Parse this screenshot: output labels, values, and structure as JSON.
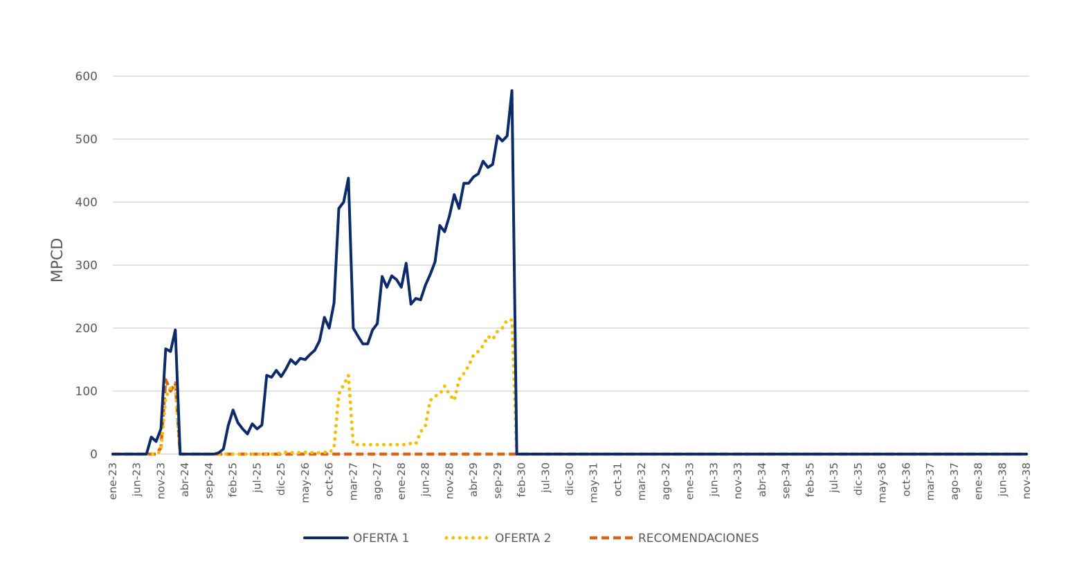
{
  "chart_data": {
    "type": "line",
    "title": "",
    "xlabel": "",
    "ylabel": "MPCD",
    "ylim": [
      0,
      600
    ],
    "y_ticks": [
      0,
      100,
      200,
      300,
      400,
      500,
      600
    ],
    "grid": true,
    "legend_position": "bottom",
    "x_start": "ene-23",
    "x_end": "nov-38",
    "x_interval": "monthly",
    "x_tick_every": 5,
    "x_tick_labels": [
      "ene-23",
      "jun-23",
      "nov-23",
      "abr-24",
      "sep-24",
      "feb-25",
      "jul-25",
      "dic-25",
      "may-26",
      "oct-26",
      "mar-27",
      "ago-27",
      "ene-28",
      "jun-28",
      "nov-28",
      "abr-29",
      "sep-29",
      "feb-30",
      "jul-30",
      "dic-30",
      "may-31",
      "oct-31",
      "mar-32",
      "ago-32",
      "ene-33",
      "jun-33",
      "nov-33",
      "abr-34",
      "sep-34",
      "feb-35",
      "jul-35",
      "dic-35",
      "may-36",
      "oct-36",
      "mar-37",
      "ago-37",
      "ene-38",
      "jun-38",
      "nov-38"
    ],
    "series": [
      {
        "name": "OFERTA 1",
        "color": "#0d2a6b",
        "style": "solid",
        "values": [
          0,
          0,
          0,
          0,
          0,
          0,
          0,
          0,
          27,
          20,
          40,
          167,
          163,
          197,
          0,
          0,
          0,
          0,
          0,
          0,
          0,
          0,
          2,
          8,
          45,
          70,
          50,
          40,
          32,
          48,
          40,
          46,
          125,
          122,
          133,
          123,
          135,
          150,
          143,
          152,
          150,
          158,
          165,
          180,
          217,
          200,
          240,
          390,
          400,
          438,
          200,
          187,
          175,
          175,
          197,
          207,
          282,
          265,
          283,
          277,
          265,
          303,
          238,
          247,
          245,
          268,
          285,
          305,
          363,
          353,
          378,
          412,
          390,
          430,
          430,
          440,
          445,
          465,
          455,
          460,
          505,
          497,
          505,
          577,
          0,
          0,
          0,
          0,
          0,
          0,
          0,
          0,
          0,
          0,
          0,
          0,
          0,
          0,
          0,
          0,
          0,
          0,
          0,
          0,
          0,
          0,
          0,
          0,
          0,
          0,
          0,
          0,
          0,
          0,
          0,
          0,
          0,
          0,
          0,
          0,
          0,
          0,
          0,
          0,
          0,
          0,
          0,
          0,
          0,
          0,
          0,
          0,
          0,
          0,
          0,
          0,
          0,
          0,
          0,
          0,
          0,
          0,
          0,
          0,
          0,
          0,
          0,
          0,
          0,
          0,
          0,
          0,
          0,
          0,
          0,
          0,
          0,
          0,
          0,
          0,
          0,
          0,
          0,
          0,
          0,
          0,
          0,
          0,
          0,
          0,
          0,
          0,
          0,
          0,
          0,
          0,
          0,
          0,
          0,
          0,
          0,
          0,
          0,
          0,
          0,
          0,
          0,
          0,
          0,
          0,
          0
        ]
      },
      {
        "name": "OFERTA 2",
        "color": "#f5c000",
        "style": "dotted",
        "values": [
          0,
          0,
          0,
          0,
          0,
          0,
          0,
          0,
          0,
          0,
          5,
          90,
          105,
          108,
          0,
          0,
          0,
          0,
          0,
          0,
          0,
          0,
          0,
          0,
          0,
          0,
          0,
          0,
          0,
          0,
          0,
          0,
          0,
          0,
          0,
          2,
          3,
          2,
          3,
          2,
          3,
          2,
          3,
          2,
          3,
          2,
          10,
          95,
          110,
          125,
          15,
          15,
          15,
          15,
          15,
          15,
          15,
          15,
          15,
          15,
          15,
          15,
          17,
          16,
          35,
          45,
          85,
          92,
          95,
          108,
          95,
          85,
          118,
          128,
          140,
          157,
          163,
          172,
          187,
          182,
          195,
          200,
          213,
          213,
          0,
          0,
          0,
          0,
          0,
          0,
          0,
          0,
          0,
          0,
          0,
          0,
          0,
          0,
          0,
          0,
          0,
          0,
          0,
          0,
          0,
          0,
          0,
          0,
          0,
          0,
          0,
          0,
          0,
          0,
          0,
          0,
          0,
          0,
          0,
          0,
          0,
          0,
          0,
          0,
          0,
          0,
          0,
          0,
          0,
          0,
          0,
          0,
          0,
          0,
          0,
          0,
          0,
          0,
          0,
          0,
          0,
          0,
          0,
          0,
          0,
          0,
          0,
          0,
          0,
          0,
          0,
          0,
          0,
          0,
          0,
          0,
          0,
          0,
          0,
          0,
          0,
          0,
          0,
          0,
          0,
          0,
          0,
          0,
          0,
          0,
          0,
          0,
          0,
          0,
          0,
          0,
          0,
          0,
          0,
          0,
          0,
          0,
          0,
          0,
          0,
          0,
          0,
          0,
          0,
          0,
          0
        ]
      },
      {
        "name": "RECOMENDACIONES",
        "color": "#d9651a",
        "style": "dashed",
        "values": [
          0,
          0,
          0,
          0,
          0,
          0,
          0,
          0,
          0,
          0,
          10,
          118,
          100,
          113,
          0
        ]
      }
    ]
  }
}
